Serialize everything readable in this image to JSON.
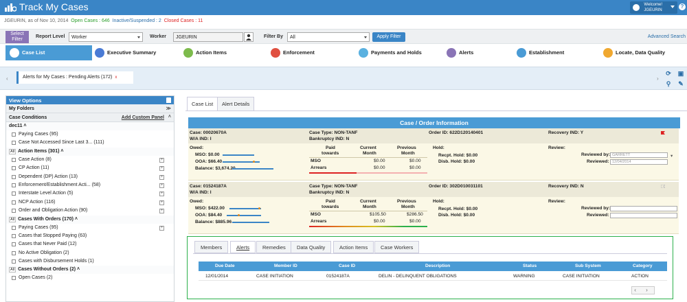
{
  "app": {
    "title": "Track My Cases",
    "welcome_line1": "Welcome!",
    "welcome_line2": "JGEURIN",
    "help": "?"
  },
  "status": {
    "user": "JGEURIN, as of Nov 10, 2014",
    "open": "Open Cases : 646",
    "inactive": "Inactive/Suspended : 2",
    "closed": "Closed Cases : 11"
  },
  "filter": {
    "select_line1": "Select",
    "select_line2": "Filter",
    "report_level_label": "Report Level",
    "report_level_value": "Worker",
    "worker_label": "Worker",
    "worker_value": "JGEURIN",
    "filter_by_label": "Filter By",
    "filter_by_value": "All",
    "apply": "Apply Filter",
    "advanced": "Advanced Search"
  },
  "nav": [
    {
      "label": "Case List",
      "color": "#4a9bd5"
    },
    {
      "label": "Executive Summary",
      "color": "#4a7bd5"
    },
    {
      "label": "Action Items",
      "color": "#7dbb4c"
    },
    {
      "label": "Enforcement",
      "color": "#e05040"
    },
    {
      "label": "Payments and Holds",
      "color": "#5ab1e0"
    },
    {
      "label": "Alerts",
      "color": "#8a74b6"
    },
    {
      "label": "Establishment",
      "color": "#4a9bd5"
    },
    {
      "label": "Locate, Data Quality",
      "color": "#f0a830"
    }
  ],
  "banner": {
    "chip": "Alerts for My Cases : Pending Alerts (172)",
    "close": "x"
  },
  "sidebar": {
    "view_options": "View Options",
    "my_folders": "My Folders",
    "case_conditions": "Case Conditions",
    "add_panel": "Add Custom Panel",
    "dec11": "dec11",
    "dec11_items": [
      "Paying Cases (95)",
      "Case Not Accessed Since Last 3... (111)"
    ],
    "action_items_head": "Action Items (301)",
    "action_items": [
      "Case Action (8)",
      "CP Action (11)",
      "Dependent (DP) Action (13)",
      "Enforcement/Establishment Acti... (58)",
      "Interstate Level Action (5)",
      "NCP Action (116)",
      "Order and Obligation Action (90)"
    ],
    "with_orders_head": "Cases With Orders (170)",
    "with_orders": [
      "Paying Cases (95)",
      "Cases that Stopped Paying (63)",
      "Cases that Never Paid (12)",
      "No Active Obligation (2)",
      "Cases with Disbursement Holds (1)"
    ],
    "without_orders_head": "Cases Without Orders (2)",
    "without_orders": [
      "Open Cases (2)"
    ],
    "all": "All"
  },
  "main_tabs": [
    "Case List",
    "Alert Details"
  ],
  "coi_title": "Case / Order Information",
  "case1": {
    "case": "Case: 00020670A",
    "wa": "W/A IND: I",
    "case_type": "Case Type: NON-TANF",
    "bankruptcy": "Bankruptcy IND: N",
    "order": "Order ID: 622D120140401",
    "recovery": "Recovery IND: Y",
    "owed": "Owed:",
    "mso": "MSO: $0.00",
    "ooa": "OOA: $66.40",
    "balance": "Balance: $3,674.20",
    "paid_towards": "Paid",
    "paid_towards2": "towards",
    "current": "Current",
    "current2": "Month",
    "previous": "Previous",
    "previous2": "Month",
    "mso_lbl": "MSO",
    "arrears_lbl": "Arrears",
    "mso_cur": "$0.00",
    "mso_prev": "$0.00",
    "arr_cur": "$0.00",
    "arr_prev": "$0.00",
    "hold": "Hold:",
    "recpt": "Recpt. Hold: $0.00",
    "disb": "Disb. Hold: $0.00",
    "review": "Review:",
    "reviewed_by": "Reviewed by:",
    "reviewed": "Reviewed:",
    "reviewed_by_val": "GARRETT",
    "reviewed_val": "12/04/2014"
  },
  "case2": {
    "case": "Case: 01524187A",
    "wa": "W/A IND: I",
    "case_type": "Case Type: NON-TANF",
    "bankruptcy": "Bankruptcy IND: N",
    "order": "Order ID: 302D010031101",
    "recovery": "Recovery IND: N",
    "owed": "Owed:",
    "mso": "MSO: $422.00",
    "ooa": "OOA: $84.40",
    "balance": "Balance: $885.96",
    "paid_towards": "Paid",
    "paid_towards2": "towards",
    "current": "Current",
    "current2": "Month",
    "previous": "Previous",
    "previous2": "Month",
    "mso_lbl": "MSO",
    "arrears_lbl": "Arrears",
    "mso_cur": "$105.50",
    "mso_prev": "$286.50",
    "arr_cur": "$0.00",
    "arr_prev": "$0.00",
    "hold": "Hold:",
    "recpt": "Recpt. Hold: $0.00",
    "disb": "Disb. Hold: $0.00",
    "review": "Review:",
    "reviewed_by": "Reviewed by:",
    "reviewed": "Reviewed:"
  },
  "sub_tabs": [
    "Members",
    "Alerts",
    "Remedies",
    "Data Quality",
    "Action Items",
    "Case Workers"
  ],
  "alerts_table": {
    "headers": [
      "Due Date",
      "Member ID",
      "Case ID",
      "Description",
      "Status",
      "Sub System",
      "Category"
    ],
    "rows": [
      [
        "12/01/2014",
        "CASE INITIATION",
        "01524187A",
        "DELIN - DELINQUENT OBLIGATIONS",
        "WARNING",
        "CASE INITIATION",
        "ACTION"
      ]
    ],
    "pager": "‹ ›"
  }
}
